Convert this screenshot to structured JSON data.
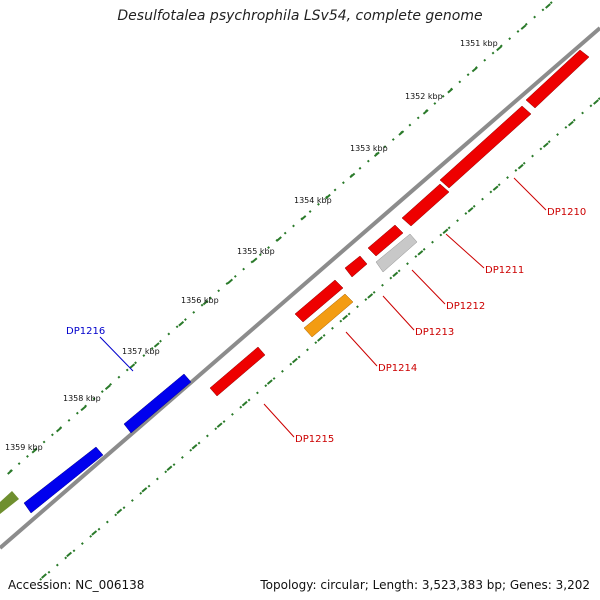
{
  "title": "Desulfotalea psychrophila LSv54, complete genome",
  "footer": {
    "accession": "Accession: NC_006138",
    "summary": "Topology: circular; Length: 3,523,383 bp; Genes: 3,202"
  },
  "scale_labels": [
    "1351 kbp",
    "1352 kbp",
    "1353 kbp",
    "1354 kbp",
    "1355 kbp",
    "1356 kbp",
    "1357 kbp",
    "1358 kbp",
    "1359 kbp"
  ],
  "genes": [
    {
      "name": "DP1210",
      "color": "#ee0000"
    },
    {
      "name": "DP1211",
      "color": "#ee0000"
    },
    {
      "name": "DP1212",
      "color": "#c8c8c8"
    },
    {
      "name": "DP1213",
      "color": "#ee0000"
    },
    {
      "name": "DP1214",
      "color": "#ee0000"
    },
    {
      "name": "DP1215",
      "color": "#ee0000"
    },
    {
      "name": "DP1216",
      "color": "#0000ee"
    }
  ],
  "colors": {
    "backbone": "#8c8c8c",
    "tick": "#2a7a2a",
    "forward_label": "#0000cc",
    "reverse_label": "#cc0000",
    "orange_feature": "#f39c12",
    "olive_feature": "#6f8f2f"
  }
}
